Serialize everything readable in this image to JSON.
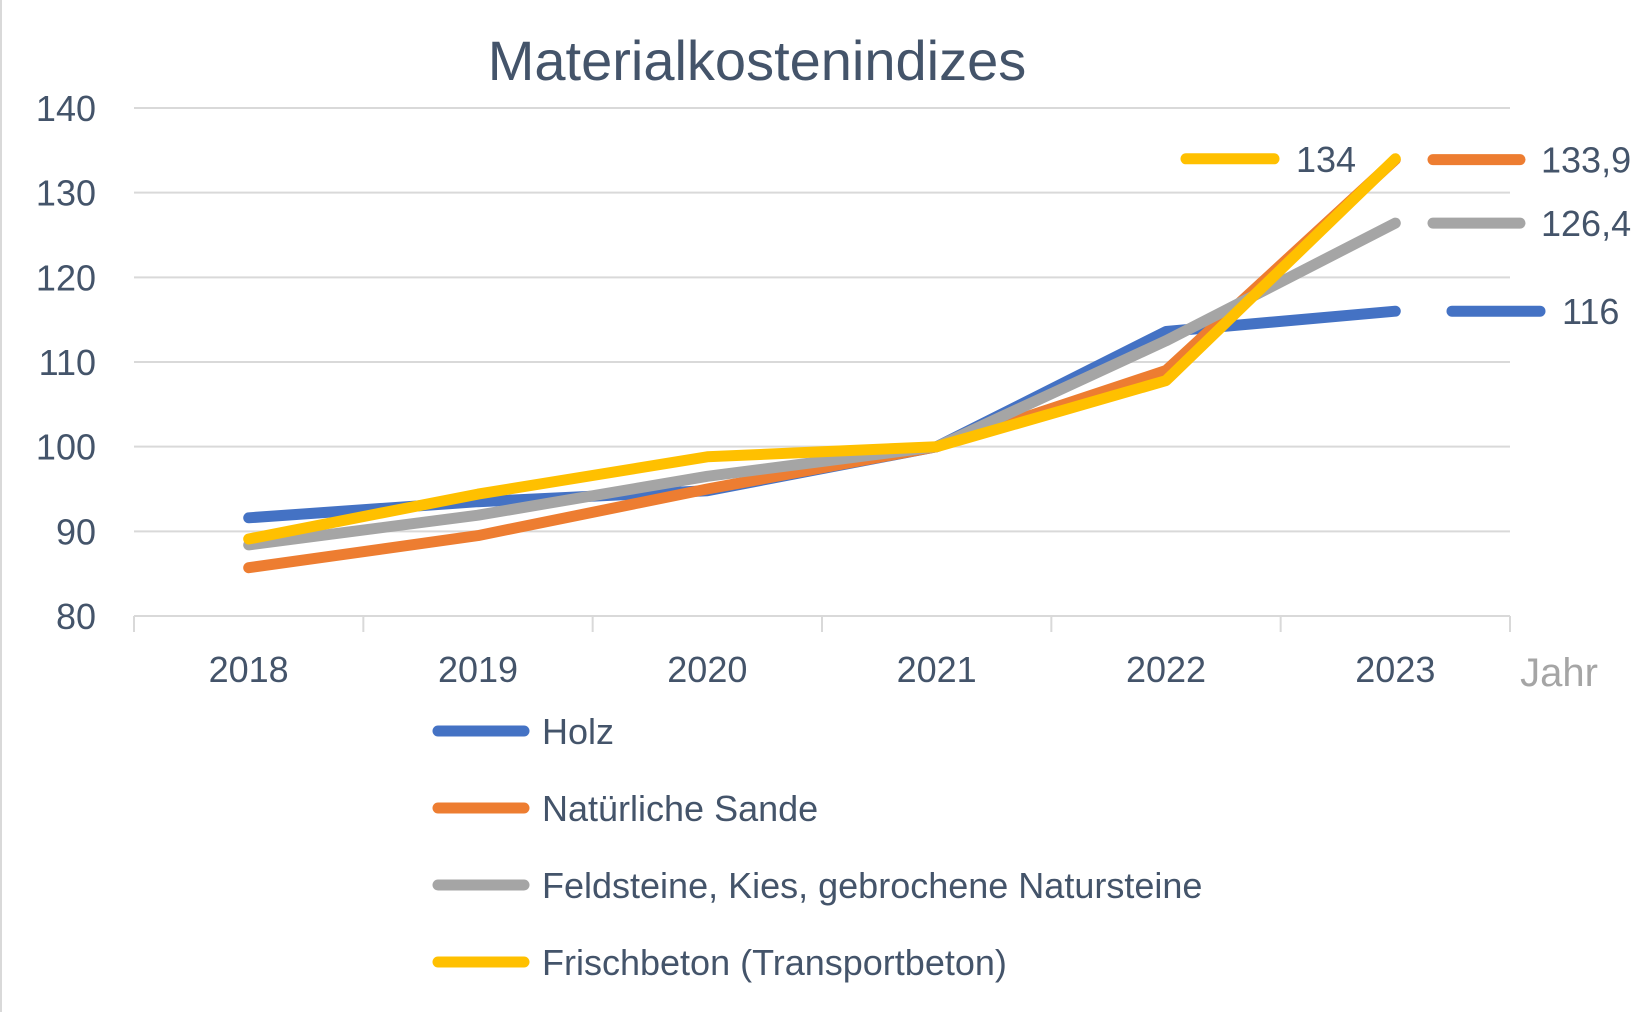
{
  "chart_data": {
    "type": "line",
    "title": "Materialkostenindizes",
    "xlabel": "Jahr",
    "ylabel": "",
    "categories": [
      "2018",
      "2019",
      "2020",
      "2021",
      "2022",
      "2023"
    ],
    "y_ticks": [
      "80",
      "90",
      "100",
      "110",
      "120",
      "130",
      "140"
    ],
    "ylim": [
      80,
      140
    ],
    "grid": true,
    "legend_position": "bottom",
    "series": [
      {
        "name": "Holz",
        "color": "#4472C4",
        "values": [
          91.6,
          93.5,
          94.8,
          100,
          113.6,
          116
        ],
        "end_label": "116"
      },
      {
        "name": "Natürliche Sande",
        "color": "#ED7D31",
        "values": [
          85.7,
          89.5,
          95.0,
          100,
          109.0,
          133.9
        ],
        "end_label": "133,9"
      },
      {
        "name": "Feldsteine, Kies, gebrochene Natursteine",
        "color": "#A5A5A5",
        "values": [
          88.4,
          91.9,
          96.5,
          100,
          112.5,
          126.4
        ],
        "end_label": "126,4"
      },
      {
        "name": "Frischbeton (Transportbeton)",
        "color": "#FFC000",
        "values": [
          89.1,
          94.4,
          98.8,
          100,
          107.8,
          134
        ],
        "end_label": "134"
      }
    ]
  }
}
